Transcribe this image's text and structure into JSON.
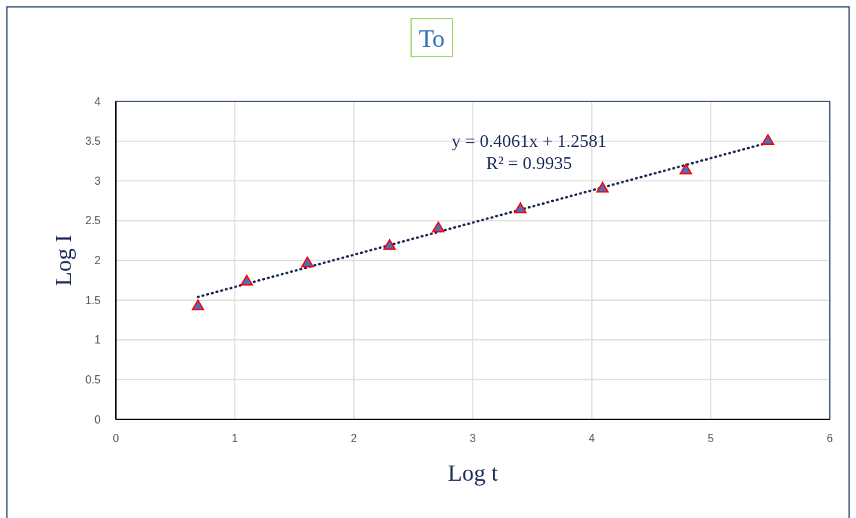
{
  "chart_data": {
    "type": "scatter",
    "title": "To",
    "xlabel": "Log t",
    "ylabel": "Log I",
    "xlim": [
      0,
      6
    ],
    "xticks": [
      0,
      1,
      2,
      3,
      4,
      5,
      6
    ],
    "ylim": [
      0,
      4
    ],
    "yticks": [
      0,
      0.5,
      1,
      1.5,
      2,
      2.5,
      3,
      3.5,
      4
    ],
    "grid": true,
    "marker": "triangle",
    "annotations": [
      "y = 0.4061x + 1.2581",
      "R² = 0.9935"
    ],
    "series": [
      {
        "color": "#4472c4",
        "x": [
          0.69,
          1.1,
          1.61,
          2.3,
          2.71,
          3.4,
          4.09,
          4.79,
          5.48
        ],
        "values": [
          1.43,
          1.74,
          1.97,
          2.19,
          2.41,
          2.65,
          2.91,
          3.14,
          3.51
        ]
      },
      {
        "type": "line",
        "color": "#1f2d5a",
        "line_style": "dotted",
        "marker": "none",
        "x": [
          0.69,
          5.48
        ],
        "values": [
          1.54,
          3.48
        ]
      }
    ]
  }
}
